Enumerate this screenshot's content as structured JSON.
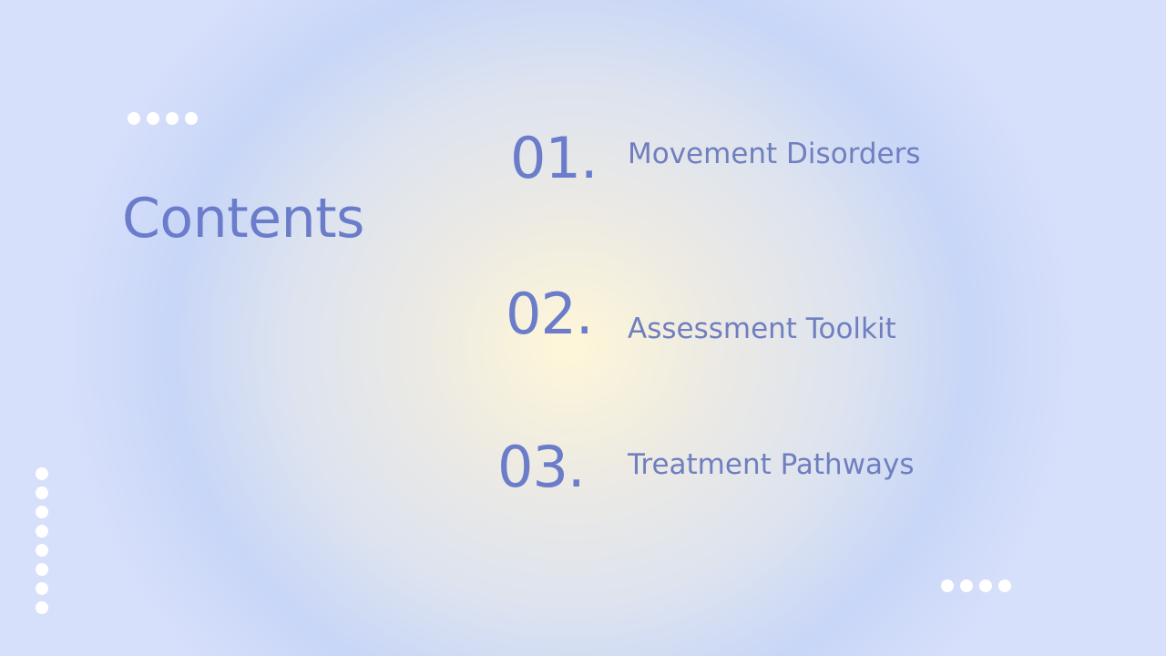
{
  "title": "Contents",
  "items": [
    {
      "number": "01.",
      "label": "Movement Disorders"
    },
    {
      "number": "02.",
      "label": "Assessment Toolkit"
    },
    {
      "number": "03.",
      "label": "Treatment Pathways"
    }
  ],
  "decorations": {
    "top_left_dots": "dots-horizontal",
    "left_vertical_dots": "dots-vertical",
    "bottom_right_dots": "dots-horizontal"
  },
  "colors": {
    "accent": "#6b7ccb",
    "label": "#6f7fbf",
    "dots": "#ffffff"
  }
}
